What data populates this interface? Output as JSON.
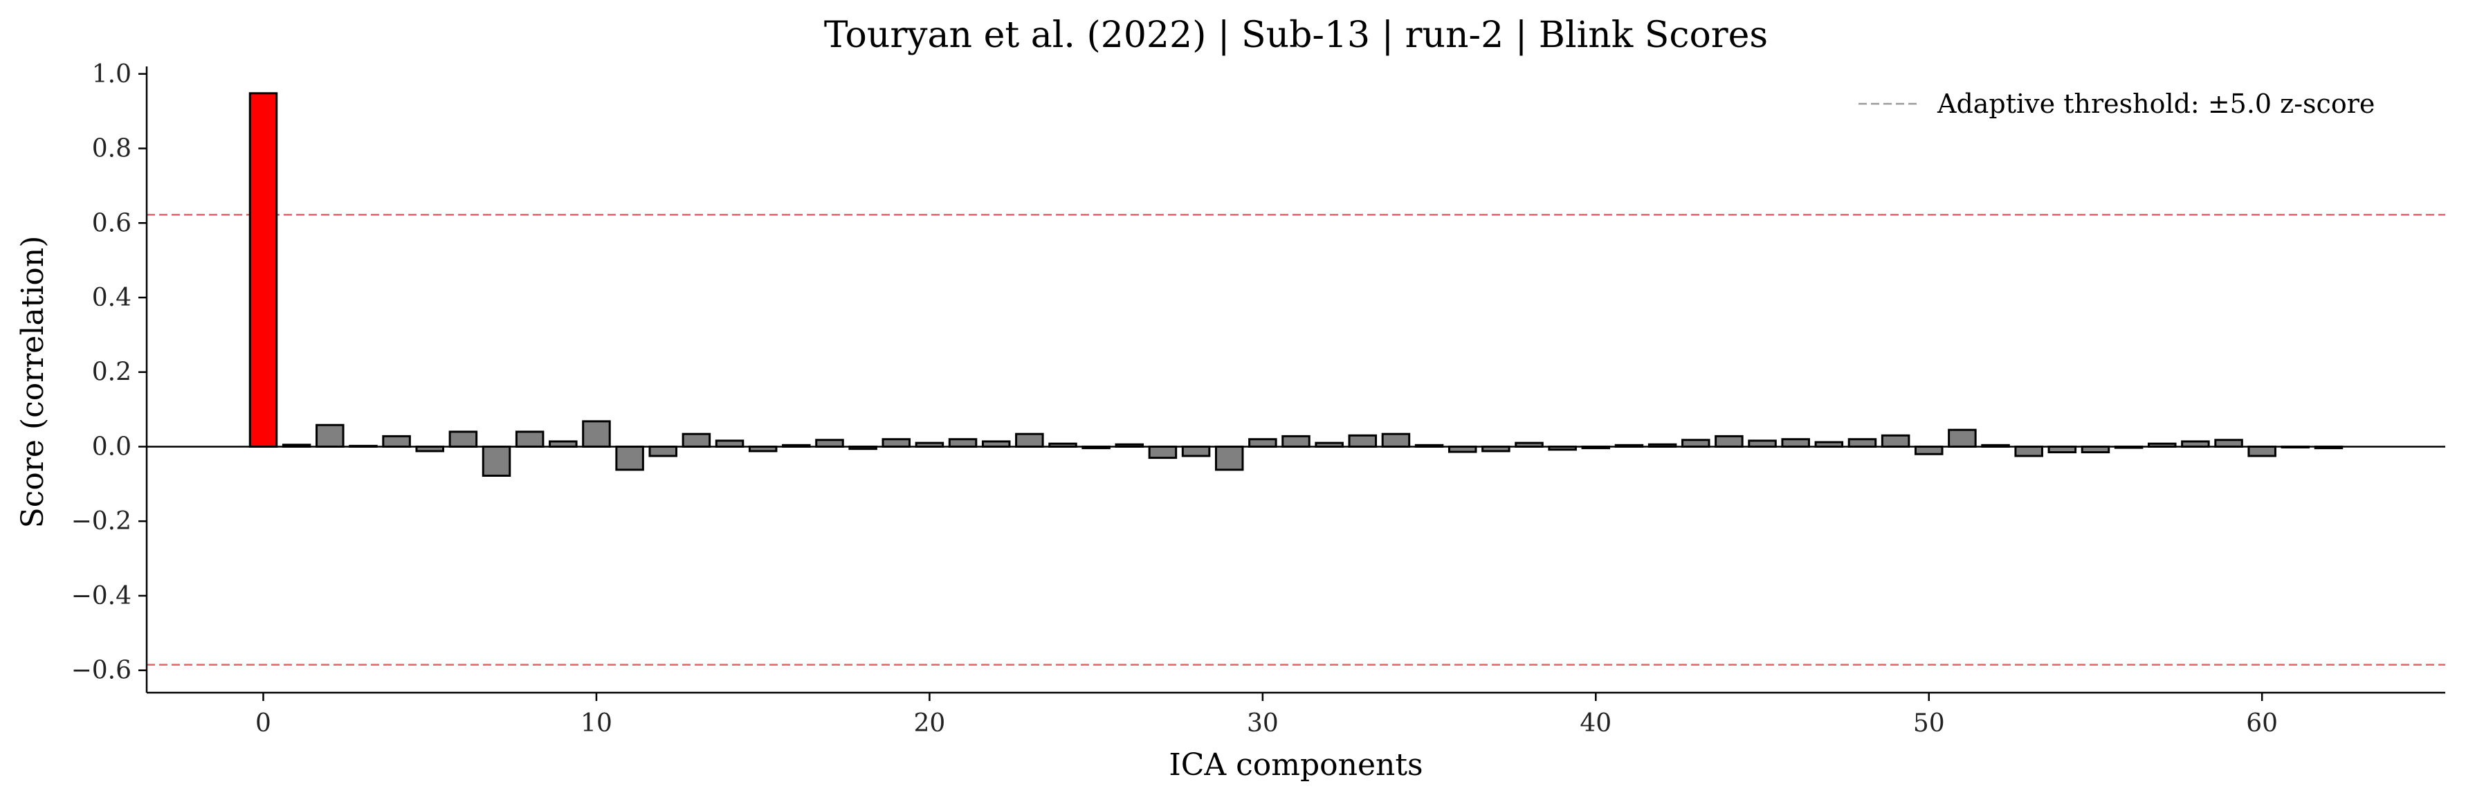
{
  "chart_data": {
    "type": "bar",
    "title": "Touryan et al. (2022) | Sub-13 | run-2 | Blink Scores",
    "xlabel": "ICA components",
    "ylabel": "Score (correlation)",
    "xlim": [
      -3.5,
      65.5
    ],
    "ylim": [
      -0.66,
      1.02
    ],
    "xticks": [
      0,
      10,
      20,
      30,
      40,
      50,
      60
    ],
    "xtick_labels": [
      "0",
      "10",
      "20",
      "30",
      "40",
      "50",
      "60"
    ],
    "yticks": [
      1.0,
      0.8,
      0.6,
      0.4,
      0.2,
      0.0,
      -0.2,
      -0.4,
      -0.6
    ],
    "ytick_labels": [
      "1.0",
      "0.8",
      "0.6",
      "0.4",
      "0.2",
      "0.0",
      "−0.2",
      "−0.4",
      "−0.6"
    ],
    "grid": false,
    "x": [
      0,
      1,
      2,
      3,
      4,
      5,
      6,
      7,
      8,
      9,
      10,
      11,
      12,
      13,
      14,
      15,
      16,
      17,
      18,
      19,
      20,
      21,
      22,
      23,
      24,
      25,
      26,
      27,
      28,
      29,
      30,
      31,
      32,
      33,
      34,
      35,
      36,
      37,
      38,
      39,
      40,
      41,
      42,
      43,
      44,
      45,
      46,
      47,
      48,
      49,
      50,
      51,
      52,
      53,
      54,
      55,
      56,
      57,
      58,
      59,
      60,
      61,
      62
    ],
    "values": [
      0.948,
      0.005,
      0.058,
      0.002,
      0.028,
      -0.012,
      0.04,
      -0.078,
      0.04,
      0.014,
      0.068,
      -0.062,
      -0.025,
      0.034,
      0.016,
      -0.012,
      0.004,
      0.018,
      -0.006,
      0.02,
      0.01,
      0.02,
      0.014,
      0.034,
      0.008,
      -0.004,
      0.006,
      -0.03,
      -0.025,
      -0.062,
      0.02,
      0.028,
      0.01,
      0.03,
      0.034,
      0.004,
      -0.014,
      -0.012,
      0.01,
      -0.008,
      -0.004,
      0.004,
      0.006,
      0.018,
      0.028,
      0.016,
      0.02,
      0.012,
      0.02,
      0.03,
      -0.02,
      0.045,
      0.004,
      -0.025,
      -0.015,
      -0.015,
      -0.003,
      0.008,
      0.014,
      0.018,
      -0.025,
      -0.002,
      -0.004
    ],
    "highlighted_indices": [
      0
    ],
    "bar_color": "#808080",
    "highlight_color": "#ff0000",
    "bar_edge_color": "#000000",
    "thresholds": [
      0.622,
      -0.585
    ],
    "threshold_color": "#e8606a",
    "legend": {
      "placement": "top-right",
      "entries": [
        {
          "label": "Adaptive threshold: ±5.0 z-score",
          "color": "#999999",
          "style": "dashed"
        }
      ]
    }
  }
}
